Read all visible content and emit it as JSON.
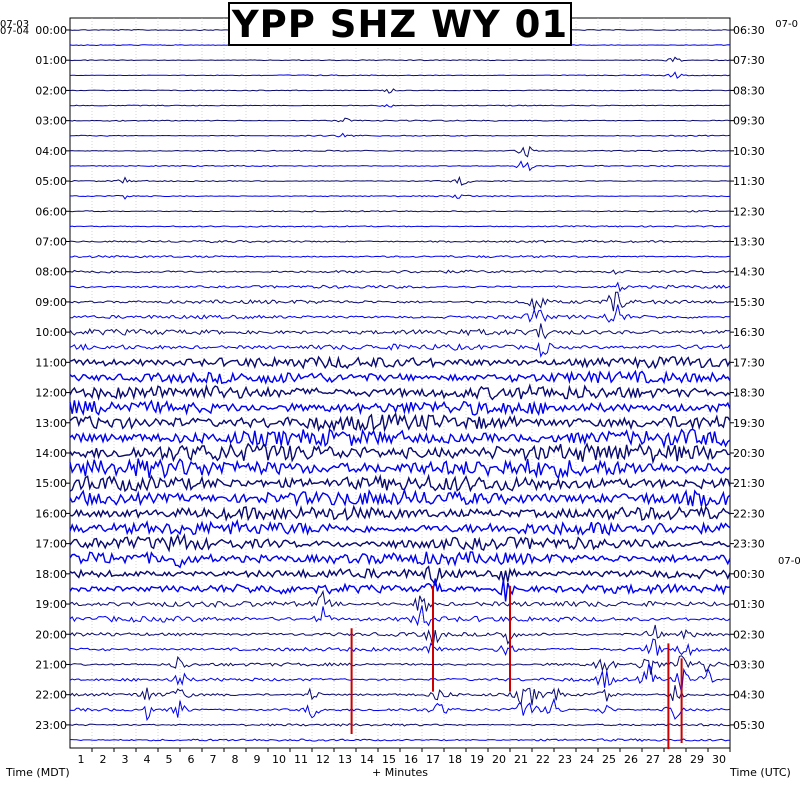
{
  "chart_data": {
    "type": "line",
    "title": "YPP SHZ WY 01",
    "xlabel": "+ Minutes",
    "left_axis_label": "Time (MDT)",
    "right_axis_label": "Time (UTC)",
    "xlim": [
      0,
      30
    ],
    "x_ticks": [
      "1",
      "2",
      "3",
      "4",
      "5",
      "6",
      "7",
      "8",
      "9",
      "10",
      "11",
      "12",
      "13",
      "14",
      "15",
      "16",
      "17",
      "18",
      "19",
      "20",
      "21",
      "22",
      "23",
      "24",
      "25",
      "26",
      "27",
      "28",
      "29",
      "30"
    ],
    "left_date_top": "07-03",
    "left_date_start": "07-04",
    "right_date_top": "07-0",
    "right_date_mid": "07-0",
    "left_hour_labels": [
      "00:00",
      "01:00",
      "02:00",
      "03:00",
      "04:00",
      "05:00",
      "06:00",
      "07:00",
      "08:00",
      "09:00",
      "10:00",
      "11:00",
      "12:00",
      "13:00",
      "14:00",
      "15:00",
      "16:00",
      "17:00",
      "18:00",
      "19:00",
      "20:00",
      "21:00",
      "22:00",
      "23:00"
    ],
    "right_hour_labels": [
      "06:30",
      "07:30",
      "08:30",
      "09:30",
      "10:30",
      "11:30",
      "12:30",
      "13:30",
      "14:30",
      "15:30",
      "16:30",
      "17:30",
      "18:30",
      "19:30",
      "20:30",
      "21:30",
      "22:30",
      "23:30",
      "00:30",
      "01:30",
      "02:30",
      "03:30",
      "04:30",
      "05:30"
    ],
    "traces_per_hour": 2,
    "trace_colors": [
      "#0a0a6e",
      "#0000ee"
    ],
    "pick_color": "#cc0000",
    "amplitude_by_hour": [
      0.4,
      0.4,
      0.4,
      0.5,
      0.5,
      0.5,
      0.6,
      0.9,
      1.3,
      1.6,
      2.5,
      5.0,
      6.0,
      7.0,
      8.0,
      7.0,
      6.0,
      5.5,
      4.0,
      2.4,
      1.7,
      1.4,
      1.3,
      1.0
    ],
    "events": [
      {
        "hour": 1,
        "minute": 27.5,
        "amplitude": 4
      },
      {
        "hour": 2,
        "minute": 14.5,
        "amplitude": 3
      },
      {
        "hour": 3,
        "minute": 12.5,
        "amplitude": 4
      },
      {
        "hour": 4,
        "minute": 20.5,
        "amplitude": 3
      },
      {
        "hour": 4,
        "minute": 20.8,
        "amplitude": 6
      },
      {
        "hour": 5,
        "minute": 17.8,
        "amplitude": 6
      },
      {
        "hour": 5,
        "minute": 2.5,
        "amplitude": 3
      },
      {
        "hour": 8,
        "minute": 25.0,
        "amplitude": 5
      },
      {
        "hour": 9,
        "minute": 21.2,
        "amplitude": 18
      },
      {
        "hour": 9,
        "minute": 24.8,
        "amplitude": 22
      },
      {
        "hour": 10,
        "minute": 21.5,
        "amplitude": 12
      },
      {
        "hour": 17,
        "minute": 5.0,
        "amplitude": 10
      },
      {
        "hour": 18,
        "minute": 16.5,
        "amplitude": 14
      },
      {
        "hour": 18,
        "minute": 19.8,
        "amplitude": 12
      },
      {
        "hour": 19,
        "minute": 11.5,
        "amplitude": 12
      },
      {
        "hour": 19,
        "minute": 16.0,
        "amplitude": 18
      },
      {
        "hour": 20,
        "minute": 16.5,
        "amplitude": 16
      },
      {
        "hour": 20,
        "minute": 19.9,
        "amplitude": 14
      },
      {
        "hour": 20,
        "minute": 26.5,
        "amplitude": 14
      },
      {
        "hour": 20,
        "minute": 28.0,
        "amplitude": 12
      },
      {
        "hour": 21,
        "minute": 5.0,
        "amplitude": 12
      },
      {
        "hour": 21,
        "minute": 24.3,
        "amplitude": 16
      },
      {
        "hour": 21,
        "minute": 26.3,
        "amplitude": 18
      },
      {
        "hour": 21,
        "minute": 27.8,
        "amplitude": 16
      },
      {
        "hour": 21,
        "minute": 29.0,
        "amplitude": 14
      },
      {
        "hour": 22,
        "minute": 3.5,
        "amplitude": 10
      },
      {
        "hour": 22,
        "minute": 5.0,
        "amplitude": 12
      },
      {
        "hour": 22,
        "minute": 11.0,
        "amplitude": 10
      },
      {
        "hour": 22,
        "minute": 16.8,
        "amplitude": 10
      },
      {
        "hour": 22,
        "minute": 20.5,
        "amplitude": 8
      },
      {
        "hour": 22,
        "minute": 21.0,
        "amplitude": 10
      },
      {
        "hour": 22,
        "minute": 22.0,
        "amplitude": 12
      },
      {
        "hour": 22,
        "minute": 24.3,
        "amplitude": 10
      },
      {
        "hour": 22,
        "minute": 27.5,
        "amplitude": 12
      }
    ],
    "picks": [
      {
        "minute": 16.5,
        "from_hour": 18.4,
        "to_hour": 21.9
      },
      {
        "minute": 20.0,
        "from_hour": 18.4,
        "to_hour": 21.9
      },
      {
        "minute": 12.8,
        "from_hour": 19.8,
        "to_hour": 23.3
      },
      {
        "minute": 27.2,
        "from_hour": 20.3,
        "to_hour": 23.8
      },
      {
        "minute": 27.8,
        "from_hour": 20.8,
        "to_hour": 23.6
      }
    ],
    "grid": true
  }
}
